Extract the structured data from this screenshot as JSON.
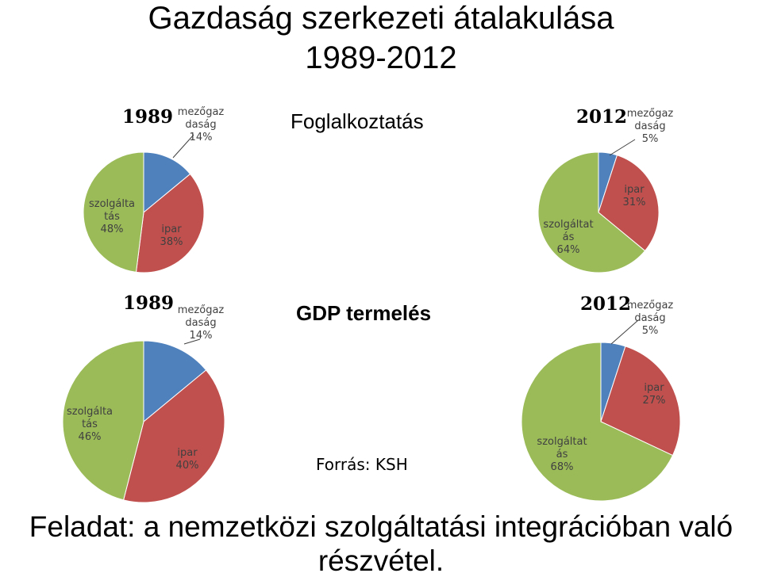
{
  "title_line1": "Gazdaság szerkezeti átalakulása",
  "title_line2": "1989-2012",
  "footer_line1": "Feladat: a nemzetközi szolgáltatási integrációban való",
  "footer_line2": "részvétel.",
  "source": "Forrás: KSH",
  "sections": {
    "employment_title": "Foglalkoztatás",
    "gdp_title": "GDP termelés"
  },
  "colors": {
    "mezogazdasag": "#4F81BD",
    "ipar": "#C0504D",
    "szolgaltatas": "#9BBB59"
  },
  "chart_data": [
    {
      "type": "pie",
      "title": "Foglalkoztatás",
      "year": "1989",
      "categories": [
        "mezőgazdaság",
        "ipar",
        "szolgáltatás"
      ],
      "values": [
        14,
        38,
        48
      ],
      "labels": [
        {
          "line1": "mezőgaz",
          "line2": "daság",
          "line3": "14%"
        },
        {
          "line1": "ipar",
          "line2": "38%",
          "line3": ""
        },
        {
          "line1": "szolgálta",
          "line2": "tás",
          "line3": "48%"
        }
      ]
    },
    {
      "type": "pie",
      "title": "Foglalkoztatás",
      "year": "2012",
      "categories": [
        "mezőgazdaság",
        "ipar",
        "szolgáltatás"
      ],
      "values": [
        5,
        31,
        64
      ],
      "labels": [
        {
          "line1": "mezőgaz",
          "line2": "daság",
          "line3": "5%"
        },
        {
          "line1": "ipar",
          "line2": "31%",
          "line3": ""
        },
        {
          "line1": "szolgáltat",
          "line2": "ás",
          "line3": "64%"
        }
      ]
    },
    {
      "type": "pie",
      "title": "GDP termelés",
      "year": "1989",
      "categories": [
        "mezőgazdaság",
        "ipar",
        "szolgáltatás"
      ],
      "values": [
        14,
        40,
        46
      ],
      "labels": [
        {
          "line1": "mezőgaz",
          "line2": "daság",
          "line3": "14%"
        },
        {
          "line1": "ipar",
          "line2": "40%",
          "line3": ""
        },
        {
          "line1": "szolgálta",
          "line2": "tás",
          "line3": "46%"
        }
      ]
    },
    {
      "type": "pie",
      "title": "GDP termelés",
      "year": "2012",
      "categories": [
        "mezőgazdaság",
        "ipar",
        "szolgáltatás"
      ],
      "values": [
        5,
        27,
        68
      ],
      "labels": [
        {
          "line1": "mezőgaz",
          "line2": "daság",
          "line3": "5%"
        },
        {
          "line1": "ipar",
          "line2": "27%",
          "line3": ""
        },
        {
          "line1": "szolgáltat",
          "line2": "ás",
          "line3": "68%"
        }
      ]
    }
  ]
}
